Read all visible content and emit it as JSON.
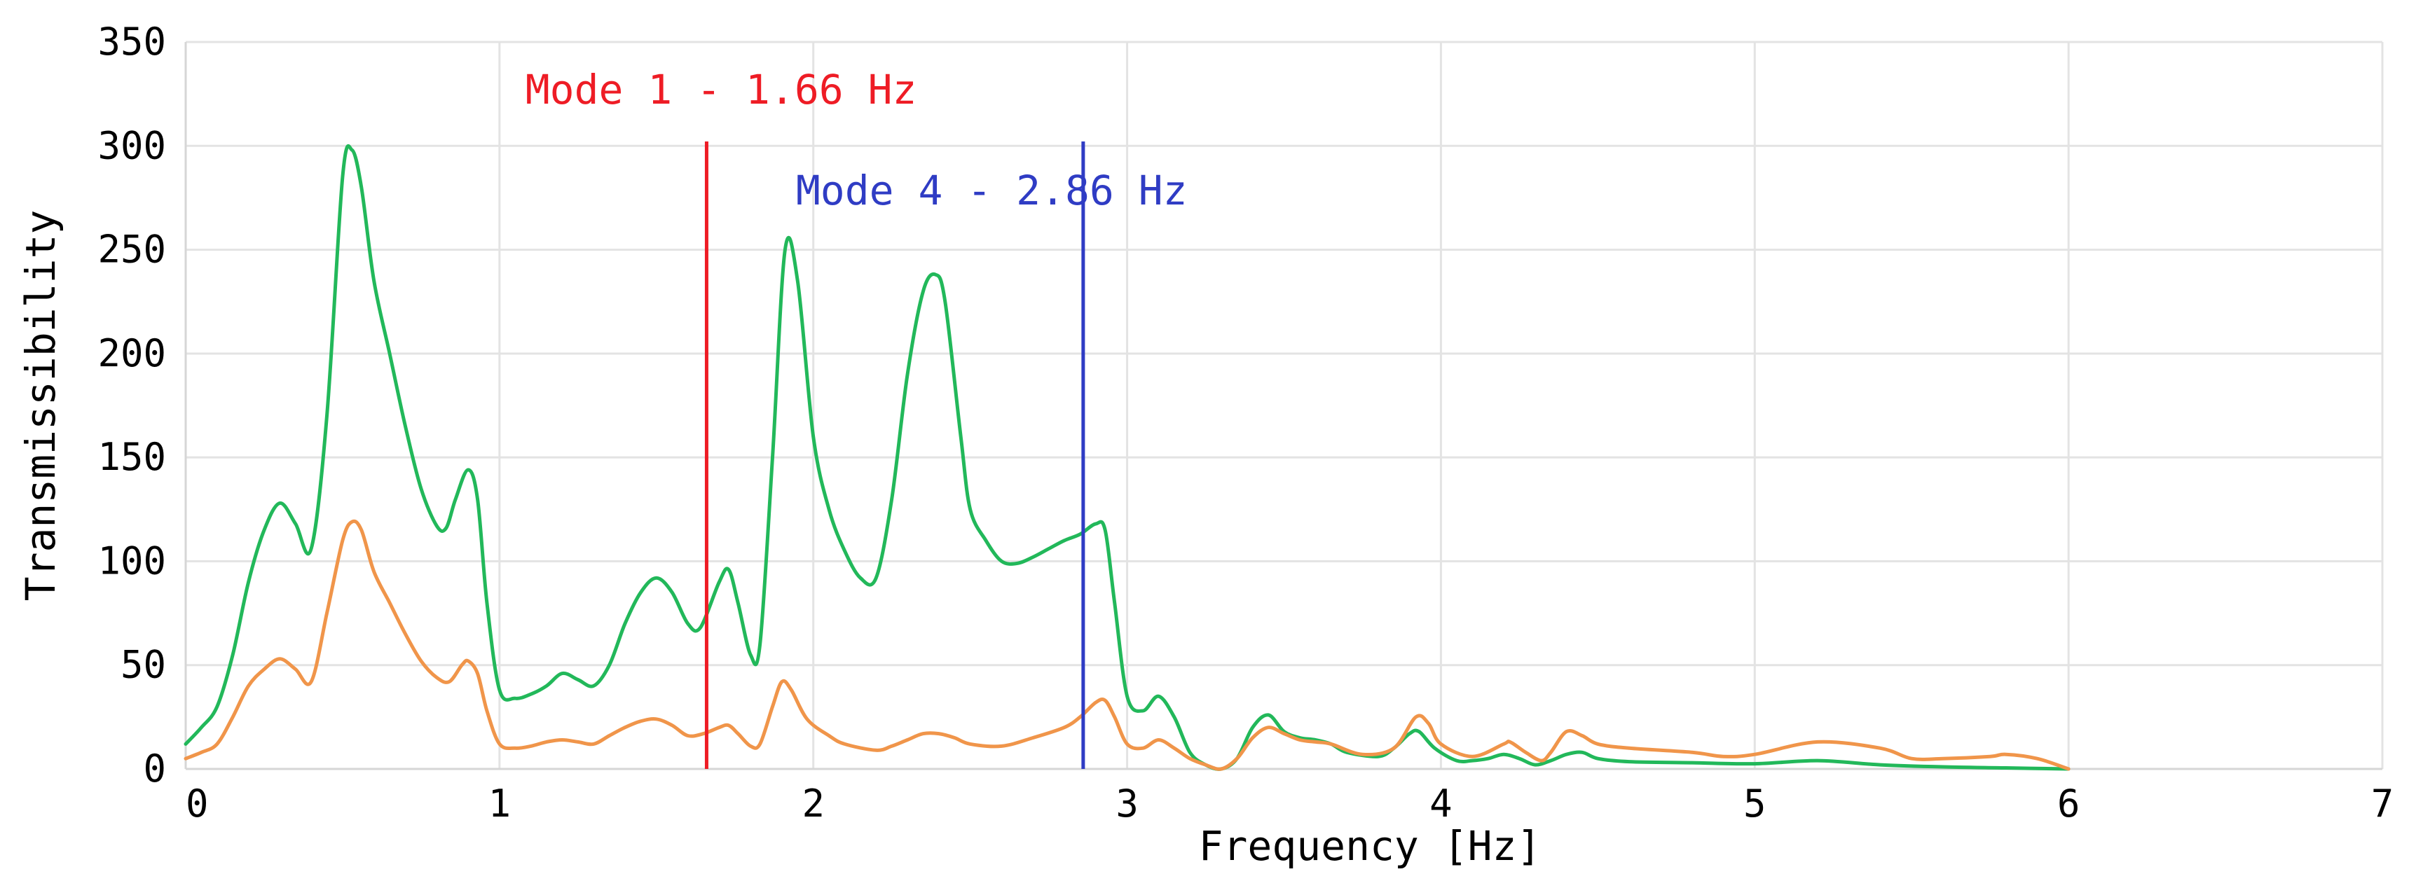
{
  "chart_data": {
    "type": "line",
    "title": "",
    "xlabel": "Frequency [Hz]",
    "ylabel": "Transmissibility",
    "xlim": [
      0,
      7
    ],
    "ylim": [
      0,
      350
    ],
    "x_ticks": [
      0,
      1,
      2,
      3,
      4,
      5,
      6,
      7
    ],
    "x_tick_labels": [
      "0",
      "1",
      "2",
      "3",
      "4",
      "5",
      "6",
      "7"
    ],
    "y_ticks": [
      0,
      50,
      100,
      150,
      200,
      250,
      300,
      350
    ],
    "y_tick_labels": [
      "0",
      "50",
      "100",
      "150",
      "200",
      "250",
      "300",
      "350"
    ],
    "grid": true,
    "series": [
      {
        "color": "#22b85a",
        "points": [
          [
            0.0,
            12
          ],
          [
            0.05,
            20
          ],
          [
            0.1,
            30
          ],
          [
            0.15,
            55
          ],
          [
            0.2,
            90
          ],
          [
            0.25,
            115
          ],
          [
            0.3,
            128
          ],
          [
            0.35,
            118
          ],
          [
            0.4,
            106
          ],
          [
            0.45,
            170
          ],
          [
            0.5,
            285
          ],
          [
            0.53,
            298
          ],
          [
            0.56,
            280
          ],
          [
            0.6,
            235
          ],
          [
            0.65,
            200
          ],
          [
            0.7,
            165
          ],
          [
            0.75,
            135
          ],
          [
            0.8,
            117
          ],
          [
            0.83,
            116
          ],
          [
            0.86,
            130
          ],
          [
            0.9,
            144
          ],
          [
            0.93,
            130
          ],
          [
            0.96,
            80
          ],
          [
            1.0,
            38
          ],
          [
            1.05,
            34
          ],
          [
            1.1,
            36
          ],
          [
            1.15,
            40
          ],
          [
            1.2,
            46
          ],
          [
            1.25,
            43
          ],
          [
            1.3,
            40
          ],
          [
            1.35,
            50
          ],
          [
            1.4,
            70
          ],
          [
            1.45,
            85
          ],
          [
            1.5,
            92
          ],
          [
            1.55,
            85
          ],
          [
            1.6,
            70
          ],
          [
            1.64,
            68
          ],
          [
            1.7,
            90
          ],
          [
            1.73,
            96
          ],
          [
            1.76,
            80
          ],
          [
            1.8,
            55
          ],
          [
            1.83,
            60
          ],
          [
            1.87,
            150
          ],
          [
            1.91,
            250
          ],
          [
            1.95,
            235
          ],
          [
            2.0,
            160
          ],
          [
            2.05,
            125
          ],
          [
            2.1,
            105
          ],
          [
            2.15,
            92
          ],
          [
            2.2,
            92
          ],
          [
            2.25,
            130
          ],
          [
            2.3,
            190
          ],
          [
            2.35,
            230
          ],
          [
            2.39,
            238
          ],
          [
            2.42,
            225
          ],
          [
            2.47,
            160
          ],
          [
            2.5,
            125
          ],
          [
            2.55,
            110
          ],
          [
            2.6,
            100
          ],
          [
            2.65,
            99
          ],
          [
            2.7,
            102
          ],
          [
            2.75,
            106
          ],
          [
            2.8,
            110
          ],
          [
            2.85,
            113
          ],
          [
            2.9,
            118
          ],
          [
            2.93,
            115
          ],
          [
            2.96,
            80
          ],
          [
            3.0,
            35
          ],
          [
            3.05,
            28
          ],
          [
            3.1,
            35
          ],
          [
            3.15,
            25
          ],
          [
            3.2,
            8
          ],
          [
            3.25,
            2
          ],
          [
            3.3,
            0
          ],
          [
            3.35,
            5
          ],
          [
            3.4,
            20
          ],
          [
            3.45,
            26
          ],
          [
            3.5,
            18
          ],
          [
            3.55,
            15
          ],
          [
            3.6,
            14
          ],
          [
            3.65,
            12
          ],
          [
            3.7,
            8
          ],
          [
            3.8,
            6
          ],
          [
            3.85,
            10
          ],
          [
            3.9,
            17
          ],
          [
            3.93,
            18
          ],
          [
            3.98,
            10
          ],
          [
            4.05,
            4
          ],
          [
            4.1,
            4
          ],
          [
            4.15,
            5
          ],
          [
            4.2,
            7
          ],
          [
            4.25,
            5
          ],
          [
            4.3,
            2
          ],
          [
            4.35,
            4
          ],
          [
            4.4,
            7
          ],
          [
            4.45,
            8
          ],
          [
            4.5,
            5
          ],
          [
            4.6,
            3.5
          ],
          [
            4.8,
            3
          ],
          [
            5.0,
            2.5
          ],
          [
            5.2,
            4
          ],
          [
            5.4,
            2
          ],
          [
            5.6,
            1
          ],
          [
            5.8,
            0.5
          ],
          [
            6.0,
            0
          ]
        ]
      },
      {
        "color": "#f0954a",
        "points": [
          [
            0.0,
            5
          ],
          [
            0.05,
            8
          ],
          [
            0.1,
            12
          ],
          [
            0.15,
            25
          ],
          [
            0.2,
            40
          ],
          [
            0.25,
            48
          ],
          [
            0.3,
            53
          ],
          [
            0.35,
            48
          ],
          [
            0.4,
            42
          ],
          [
            0.45,
            75
          ],
          [
            0.5,
            110
          ],
          [
            0.53,
            119
          ],
          [
            0.56,
            115
          ],
          [
            0.6,
            95
          ],
          [
            0.65,
            80
          ],
          [
            0.7,
            65
          ],
          [
            0.75,
            52
          ],
          [
            0.8,
            44
          ],
          [
            0.84,
            42
          ],
          [
            0.88,
            50
          ],
          [
            0.9,
            52
          ],
          [
            0.93,
            46
          ],
          [
            0.96,
            28
          ],
          [
            1.0,
            12
          ],
          [
            1.05,
            10
          ],
          [
            1.1,
            11
          ],
          [
            1.15,
            13
          ],
          [
            1.2,
            14
          ],
          [
            1.25,
            13
          ],
          [
            1.3,
            12
          ],
          [
            1.35,
            16
          ],
          [
            1.4,
            20
          ],
          [
            1.45,
            23
          ],
          [
            1.5,
            24
          ],
          [
            1.55,
            21
          ],
          [
            1.6,
            16
          ],
          [
            1.65,
            17
          ],
          [
            1.7,
            20
          ],
          [
            1.73,
            21
          ],
          [
            1.76,
            17
          ],
          [
            1.8,
            11
          ],
          [
            1.83,
            12
          ],
          [
            1.87,
            30
          ],
          [
            1.9,
            42
          ],
          [
            1.93,
            38
          ],
          [
            1.98,
            24
          ],
          [
            2.05,
            16
          ],
          [
            2.1,
            12
          ],
          [
            2.2,
            9
          ],
          [
            2.25,
            11
          ],
          [
            2.3,
            14
          ],
          [
            2.35,
            17
          ],
          [
            2.4,
            17
          ],
          [
            2.45,
            15
          ],
          [
            2.5,
            12
          ],
          [
            2.6,
            11
          ],
          [
            2.7,
            15
          ],
          [
            2.8,
            20
          ],
          [
            2.85,
            25
          ],
          [
            2.9,
            32
          ],
          [
            2.93,
            33
          ],
          [
            2.96,
            25
          ],
          [
            3.0,
            12
          ],
          [
            3.05,
            10
          ],
          [
            3.1,
            14
          ],
          [
            3.15,
            10
          ],
          [
            3.2,
            5
          ],
          [
            3.25,
            2
          ],
          [
            3.3,
            0
          ],
          [
            3.35,
            5
          ],
          [
            3.4,
            15
          ],
          [
            3.45,
            20
          ],
          [
            3.5,
            17
          ],
          [
            3.55,
            14
          ],
          [
            3.6,
            13
          ],
          [
            3.65,
            12
          ],
          [
            3.75,
            7
          ],
          [
            3.85,
            10
          ],
          [
            3.92,
            25
          ],
          [
            3.96,
            22
          ],
          [
            4.0,
            12
          ],
          [
            4.1,
            6
          ],
          [
            4.2,
            12
          ],
          [
            4.22,
            13
          ],
          [
            4.27,
            8
          ],
          [
            4.32,
            4
          ],
          [
            4.35,
            8
          ],
          [
            4.4,
            18
          ],
          [
            4.45,
            16
          ],
          [
            4.5,
            12
          ],
          [
            4.6,
            10
          ],
          [
            4.8,
            8
          ],
          [
            4.9,
            6
          ],
          [
            5.0,
            7
          ],
          [
            5.2,
            13
          ],
          [
            5.4,
            10
          ],
          [
            5.5,
            5
          ],
          [
            5.6,
            5
          ],
          [
            5.75,
            6
          ],
          [
            5.8,
            7
          ],
          [
            5.9,
            5
          ],
          [
            6.0,
            0
          ]
        ]
      }
    ],
    "markers": [
      {
        "x": 1.66,
        "label": "Mode 1 - 1.66 Hz",
        "color": "#ee1c25"
      },
      {
        "x": 2.86,
        "label": "Mode 4 - 2.86 Hz",
        "color": "#2f3cc4"
      }
    ]
  }
}
